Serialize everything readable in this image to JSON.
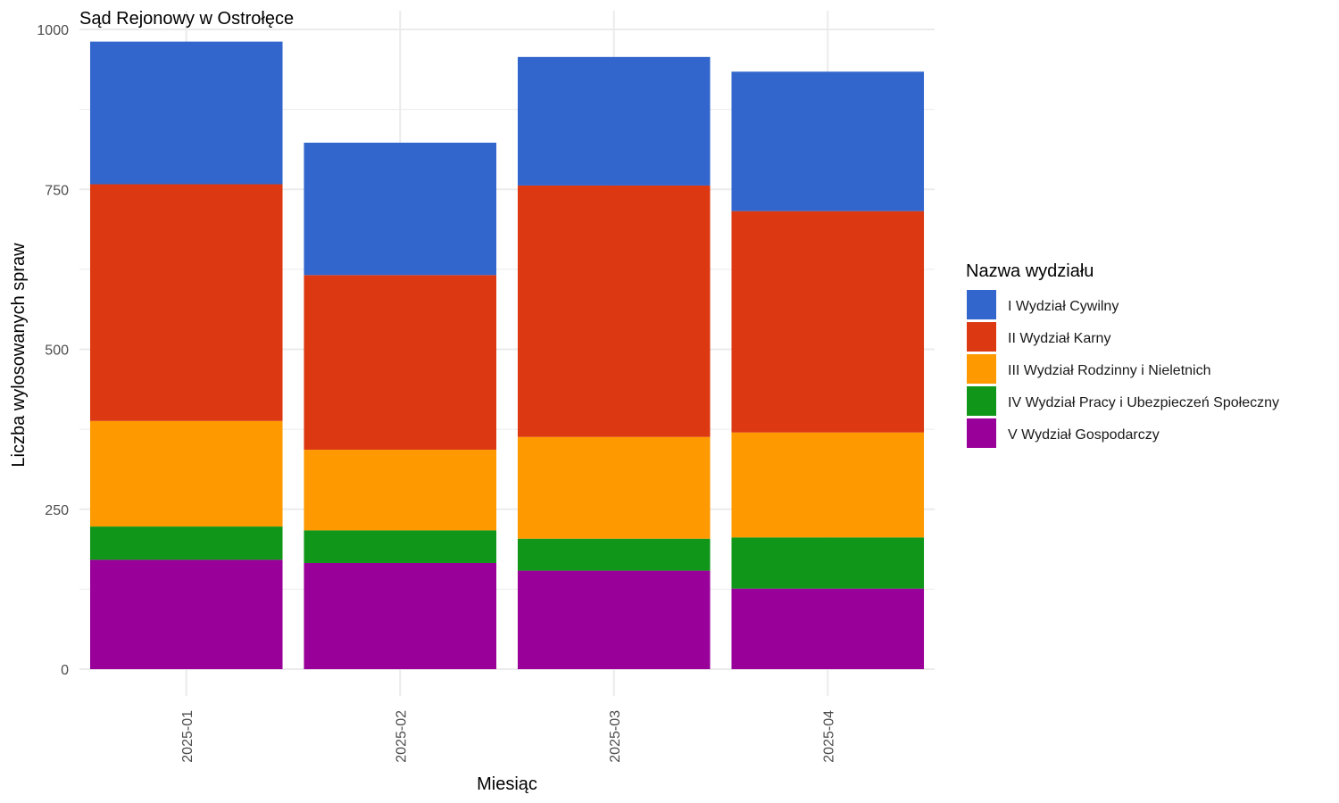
{
  "chart_data": {
    "type": "bar",
    "stacked": true,
    "title": "Sąd Rejonowy w Ostrołęce",
    "xlabel": "Miesiąc",
    "ylabel": "Liczba wylosowanych spraw",
    "ylim": [
      0,
      1000
    ],
    "yticks": [
      0,
      250,
      500,
      750,
      1000
    ],
    "ytick_labels": [
      "0",
      "250",
      "500",
      "750",
      "1000"
    ],
    "grid": true,
    "legend_title": "Nazwa wydziału",
    "legend_position": "right",
    "categories": [
      "2025-01",
      "2025-02",
      "2025-03",
      "2025-04"
    ],
    "series": [
      {
        "name": "V Wydział Gospodarczy",
        "color": "#990099",
        "values": [
          171,
          166,
          154,
          126
        ]
      },
      {
        "name": "IV Wydział Pracy i Ubezpieczeń Społeczny",
        "color": "#109618",
        "values": [
          52,
          51,
          50,
          80
        ]
      },
      {
        "name": "III Wydział Rodzinny i Nieletnich",
        "color": "#FF9900",
        "values": [
          165,
          126,
          159,
          164
        ]
      },
      {
        "name": "II Wydział Karny",
        "color": "#DC3912",
        "values": [
          370,
          273,
          393,
          346
        ]
      },
      {
        "name": "I Wydział Cywilny",
        "color": "#3366CC",
        "values": [
          223,
          207,
          201,
          218
        ]
      }
    ],
    "legend_order": [
      "I Wydział Cywilny",
      "II Wydział Karny",
      "III Wydział Rodzinny i Nieletnich",
      "IV Wydział Pracy i Ubezpieczeń Społeczny",
      "V Wydział Gospodarczy"
    ]
  }
}
